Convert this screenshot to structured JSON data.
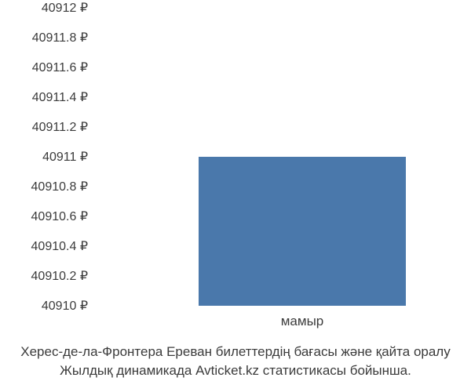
{
  "chart": {
    "type": "bar",
    "background_color": "#ffffff",
    "bar_color": "#4a78ab",
    "text_color": "#3b3b3b",
    "currency_symbol": "₽",
    "ylim": [
      40910,
      40912
    ],
    "ytick_step": 0.2,
    "yticks": [
      {
        "label": "40912 ₽",
        "value": 40912
      },
      {
        "label": "40911.8 ₽",
        "value": 40911.8
      },
      {
        "label": "40911.6 ₽",
        "value": 40911.6
      },
      {
        "label": "40911.4 ₽",
        "value": 40911.4
      },
      {
        "label": "40911.2 ₽",
        "value": 40911.2
      },
      {
        "label": "40911 ₽",
        "value": 40911
      },
      {
        "label": "40910.8 ₽",
        "value": 40910.8
      },
      {
        "label": "40910.6 ₽",
        "value": 40910.6
      },
      {
        "label": "40910.4 ₽",
        "value": 40910.4
      },
      {
        "label": "40910.2 ₽",
        "value": 40910.2
      },
      {
        "label": "40910 ₽",
        "value": 40910
      }
    ],
    "categories": [
      "мамыр"
    ],
    "values": [
      40911
    ],
    "bar_width": 0.56,
    "label_fontsize": 16,
    "xlabel_fontsize": 17
  },
  "caption": {
    "line1": "Херес-де-ла-Фронтера Ереван билеттердің бағасы және қайта оралу",
    "line2": "Жылдық динамикада Avticket.kz статистикасы бойынша.",
    "fontsize": 17
  }
}
